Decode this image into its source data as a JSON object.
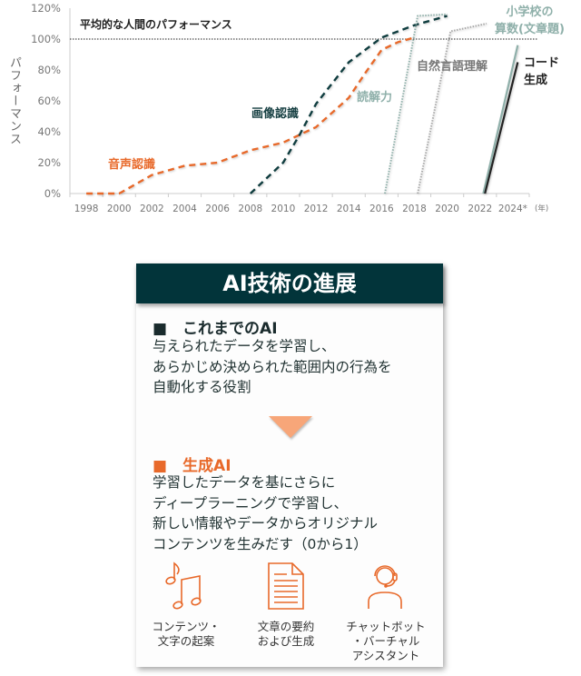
{
  "chart_data": {
    "type": "line",
    "ylabel": "パフォーマンス",
    "xlabel_unit": "(年)",
    "ylim": [
      0,
      120
    ],
    "xlim": [
      1997,
      2025
    ],
    "y_ticks": [
      "0%",
      "20%",
      "40%",
      "60%",
      "80%",
      "100%",
      "120%"
    ],
    "x_ticks": [
      "1998",
      "2000",
      "2002",
      "2004",
      "2006",
      "2008",
      "2010",
      "2012",
      "2014",
      "2016",
      "2018",
      "2020",
      "2022",
      "2024*"
    ],
    "reference_line": {
      "label": "平均的な人間のパフォーマンス",
      "value": 100
    },
    "grid": false,
    "series": [
      {
        "name": "音声認識",
        "style": "dashed",
        "color": "#e8692a",
        "points": [
          [
            1998,
            0
          ],
          [
            2000,
            0
          ],
          [
            2002,
            12
          ],
          [
            2004,
            18
          ],
          [
            2006,
            20
          ],
          [
            2008,
            28
          ],
          [
            2010,
            33
          ],
          [
            2011,
            38
          ],
          [
            2012,
            43
          ],
          [
            2014,
            62
          ],
          [
            2015,
            78
          ],
          [
            2016,
            93
          ],
          [
            2017,
            98
          ],
          [
            2018,
            101
          ]
        ]
      },
      {
        "name": "画像認識",
        "style": "dashed",
        "color": "#0f3d3f",
        "points": [
          [
            2008,
            0
          ],
          [
            2010,
            20
          ],
          [
            2011,
            38
          ],
          [
            2012,
            58
          ],
          [
            2014,
            85
          ],
          [
            2016,
            101
          ],
          [
            2018,
            109
          ],
          [
            2020,
            115
          ]
        ]
      },
      {
        "name": "読解力",
        "style": "dotted",
        "color": "#8fb0aa",
        "points": [
          [
            2016.2,
            0
          ],
          [
            2018.2,
            115
          ],
          [
            2020,
            116
          ]
        ]
      },
      {
        "name": "自然言語理解",
        "style": "dotted",
        "color": "#a9a9a9",
        "points": [
          [
            2018.2,
            0
          ],
          [
            2020.2,
            105
          ],
          [
            2022.4,
            110
          ]
        ]
      },
      {
        "name": "小学校の算数(文章題)",
        "style": "solid",
        "color": "#8fb0aa",
        "points": [
          [
            2022.2,
            0
          ],
          [
            2024.3,
            96
          ]
        ]
      },
      {
        "name": "コード生成",
        "style": "solid",
        "color": "#222222",
        "points": [
          [
            2022.3,
            0
          ],
          [
            2024.3,
            85
          ]
        ]
      }
    ]
  },
  "labels": {
    "reference": "平均的な人間のパフォーマンス",
    "speech": "音声認識",
    "image": "画像認識",
    "reading": "読解力",
    "nlu": "自然言語理解",
    "math_1": "小学校の",
    "math_2": "算数(文章題)",
    "code_1": "コード",
    "code_2": "生成"
  },
  "panel": {
    "title": "AI技術の進展",
    "past": {
      "title": "■　これまでのAI",
      "body": "与えられたデータを学習し、\nあらかじめ決められた範囲内の行為を\n自動化する役割"
    },
    "genai": {
      "title": "■　生成AI",
      "body": "学習したデータを基にさらに\nディープラーニングで学習し、\n新しい情報やデータからオリジナル\nコンテンツを生みだす（0から1）"
    },
    "uses": [
      {
        "icon": "music-notes-icon",
        "label": "コンテンツ・\n文字の起案"
      },
      {
        "icon": "document-icon",
        "label": "文章の要約\nおよび生成"
      },
      {
        "icon": "headset-operator-icon",
        "label": "チャットボット\n・バーチャル\nアシスタント"
      }
    ]
  },
  "colors": {
    "accent": "#e8692a",
    "dark": "#02343a",
    "muted": "#8fb0aa"
  }
}
